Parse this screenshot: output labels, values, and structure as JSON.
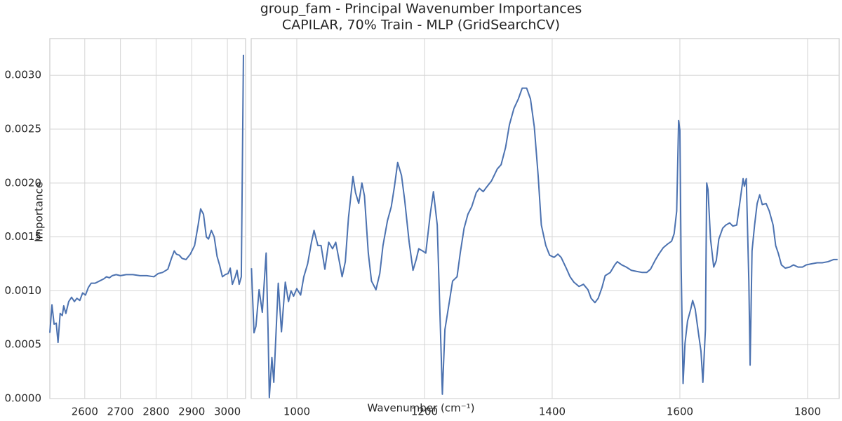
{
  "title": "group_fam - Principal Wavenumber Importances",
  "subtitle": "CAPILAR, 70% Train - MLP (GridSearchCV)",
  "xlabel": "Wavenumber (cm⁻¹)",
  "ylabel": "Importance",
  "chart_data": [
    {
      "type": "line",
      "color": "#4c72b0",
      "grid": true,
      "xlim": [
        2502,
        3051
      ],
      "xticks": [
        2600,
        2700,
        2800,
        2900,
        3000
      ],
      "ylim": [
        0,
        0.00334
      ],
      "yticks": [
        {
          "value": 0,
          "label": "0.0000"
        },
        {
          "value": 0.0005,
          "label": "0.0005"
        },
        {
          "value": 0.001,
          "label": "0.0010"
        },
        {
          "value": 0.0015,
          "label": "0.0015"
        },
        {
          "value": 0.002,
          "label": "0.0020"
        },
        {
          "value": 0.0025,
          "label": "0.0025"
        },
        {
          "value": 0.003,
          "label": "0.0030"
        }
      ],
      "x": [
        2502,
        2508,
        2514,
        2520,
        2525,
        2531,
        2537,
        2541,
        2547,
        2555,
        2563,
        2571,
        2578,
        2586,
        2594,
        2602,
        2610,
        2618,
        2629,
        2641,
        2653,
        2661,
        2669,
        2677,
        2688,
        2700,
        2716,
        2735,
        2755,
        2774,
        2794,
        2806,
        2818,
        2833,
        2843,
        2851,
        2857,
        2865,
        2873,
        2884,
        2896,
        2908,
        2918,
        2925,
        2933,
        2941,
        2947,
        2955,
        2963,
        2971,
        2978,
        2986,
        2994,
        3002,
        3008,
        3014,
        3022,
        3027,
        3033,
        3039,
        3045
      ],
      "values": [
        0.00061,
        0.00087,
        0.00069,
        0.0007,
        0.00052,
        0.00079,
        0.00077,
        0.00086,
        0.00079,
        0.0009,
        0.00094,
        0.0009,
        0.00093,
        0.00091,
        0.00098,
        0.00096,
        0.00103,
        0.00107,
        0.00107,
        0.00109,
        0.00111,
        0.00113,
        0.00112,
        0.00114,
        0.00115,
        0.00114,
        0.00115,
        0.00115,
        0.00114,
        0.00114,
        0.00113,
        0.00116,
        0.00117,
        0.0012,
        0.0013,
        0.00137,
        0.00134,
        0.00133,
        0.0013,
        0.00129,
        0.00134,
        0.00142,
        0.00161,
        0.00176,
        0.00171,
        0.0015,
        0.00148,
        0.00156,
        0.0015,
        0.00132,
        0.00124,
        0.00113,
        0.00115,
        0.00116,
        0.00121,
        0.00106,
        0.00113,
        0.00119,
        0.00106,
        0.00113,
        0.00319
      ]
    },
    {
      "type": "line",
      "color": "#4c72b0",
      "grid": true,
      "xlim": [
        928.6,
        1849.5
      ],
      "xticks": [
        1000,
        1200,
        1400,
        1600,
        1800
      ],
      "x": [
        929,
        933,
        936,
        941,
        946,
        952,
        955,
        957,
        961,
        964,
        971,
        976,
        982,
        987,
        991,
        995,
        1000,
        1006,
        1011,
        1017,
        1023,
        1027,
        1033,
        1038,
        1044,
        1050,
        1056,
        1061,
        1067,
        1071,
        1076,
        1081,
        1088,
        1092,
        1097,
        1102,
        1106,
        1112,
        1117,
        1124,
        1130,
        1135,
        1142,
        1148,
        1153,
        1158,
        1164,
        1169,
        1176,
        1182,
        1187,
        1191,
        1197,
        1202,
        1209,
        1214,
        1220,
        1224,
        1228,
        1232,
        1239,
        1244,
        1251,
        1256,
        1262,
        1268,
        1274,
        1281,
        1286,
        1292,
        1297,
        1305,
        1314,
        1320,
        1327,
        1333,
        1340,
        1347,
        1353,
        1360,
        1366,
        1372,
        1378,
        1383,
        1390,
        1396,
        1403,
        1409,
        1414,
        1422,
        1428,
        1434,
        1442,
        1449,
        1456,
        1461,
        1467,
        1472,
        1478,
        1483,
        1491,
        1498,
        1502,
        1509,
        1516,
        1524,
        1532,
        1541,
        1548,
        1554,
        1561,
        1567,
        1574,
        1580,
        1587,
        1591,
        1595,
        1598,
        1600,
        1602,
        1605,
        1608,
        1612,
        1617,
        1620,
        1624,
        1629,
        1633,
        1636,
        1640,
        1642,
        1644,
        1648,
        1653,
        1657,
        1661,
        1667,
        1672,
        1678,
        1683,
        1689,
        1693,
        1699,
        1701,
        1704,
        1708,
        1710,
        1713,
        1717,
        1721,
        1725,
        1729,
        1735,
        1740,
        1746,
        1750,
        1754,
        1759,
        1765,
        1772,
        1778,
        1785,
        1792,
        1798,
        1806,
        1815,
        1823,
        1832,
        1841,
        1847
      ],
      "values": [
        0.00121,
        0.00061,
        0.00067,
        0.00101,
        0.0008,
        0.00135,
        0.00064,
        1e-05,
        0.00038,
        0.00015,
        0.00107,
        0.00062,
        0.00108,
        0.0009,
        0.001,
        0.00095,
        0.00102,
        0.00096,
        0.00113,
        0.00125,
        0.00145,
        0.00156,
        0.00142,
        0.00142,
        0.0012,
        0.00145,
        0.00139,
        0.00145,
        0.00126,
        0.00113,
        0.00127,
        0.00168,
        0.00206,
        0.00191,
        0.00181,
        0.002,
        0.00188,
        0.00135,
        0.00109,
        0.00101,
        0.00116,
        0.00142,
        0.00165,
        0.00178,
        0.00197,
        0.00219,
        0.00207,
        0.00184,
        0.00145,
        0.00119,
        0.00129,
        0.00139,
        0.00137,
        0.00135,
        0.00171,
        0.00192,
        0.00161,
        0.00083,
        4e-05,
        0.00064,
        0.0009,
        0.00109,
        0.00113,
        0.00135,
        0.00158,
        0.00171,
        0.00178,
        0.00191,
        0.00195,
        0.00192,
        0.00196,
        0.00202,
        0.00213,
        0.00217,
        0.00233,
        0.00254,
        0.00269,
        0.00278,
        0.00288,
        0.00288,
        0.00278,
        0.00252,
        0.00207,
        0.00161,
        0.00142,
        0.00133,
        0.00131,
        0.00134,
        0.00131,
        0.00121,
        0.00113,
        0.00108,
        0.00104,
        0.00106,
        0.00101,
        0.00093,
        0.00089,
        0.00093,
        0.00103,
        0.00114,
        0.00117,
        0.00124,
        0.00127,
        0.00124,
        0.00122,
        0.00119,
        0.00118,
        0.00117,
        0.00117,
        0.0012,
        0.00128,
        0.00134,
        0.0014,
        0.00143,
        0.00146,
        0.00153,
        0.00174,
        0.00258,
        0.00249,
        0.00122,
        0.00014,
        0.00051,
        0.00072,
        0.00083,
        0.00091,
        0.00083,
        0.00061,
        0.00044,
        0.00015,
        0.00064,
        0.002,
        0.00194,
        0.00148,
        0.00122,
        0.00128,
        0.00148,
        0.00158,
        0.00161,
        0.00163,
        0.0016,
        0.00161,
        0.00178,
        0.00204,
        0.00197,
        0.00204,
        0.00109,
        0.00031,
        0.00137,
        0.00161,
        0.00181,
        0.00189,
        0.0018,
        0.00181,
        0.00174,
        0.00161,
        0.00142,
        0.00135,
        0.00124,
        0.00121,
        0.00122,
        0.00124,
        0.00122,
        0.00122,
        0.00124,
        0.00125,
        0.00126,
        0.00126,
        0.00127,
        0.00129,
        0.00129
      ]
    }
  ]
}
